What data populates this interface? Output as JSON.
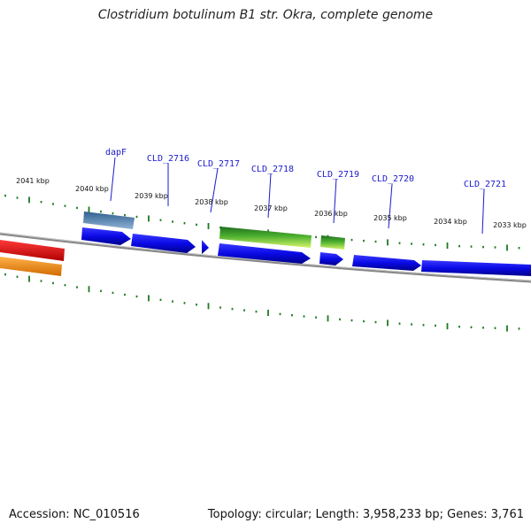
{
  "header": {
    "title": "Clostridium botulinum B1 str. Okra, complete genome"
  },
  "footer": {
    "accession": "Accession: NC_010516",
    "summary": "Topology: circular; Length: 3,958,233 bp; Genes: 3,761"
  },
  "map": {
    "kbp_labels": [
      "2041 kbp",
      "2040 kbp",
      "2039 kbp",
      "2038 kbp",
      "2037 kbp",
      "2036 kbp",
      "2035 kbp",
      "2034 kbp",
      "2033 kbp"
    ],
    "gene_labels": [
      "dapF",
      "CLD_2716",
      "CLD_2717",
      "CLD_2718",
      "CLD_2719",
      "CLD_2720",
      "CLD_2721"
    ],
    "colors": {
      "cds": "#0a0ae6",
      "tick": "#1f7a1f",
      "backbone": "#888888",
      "rrna_red": "#e60000",
      "rrna_orange": "#ff8c00",
      "trna_blue": "#4a7aa8",
      "feature_green": "#2e8b2e",
      "feature_lime": "#b6e65a",
      "label_blue": "#1a1acc"
    }
  }
}
